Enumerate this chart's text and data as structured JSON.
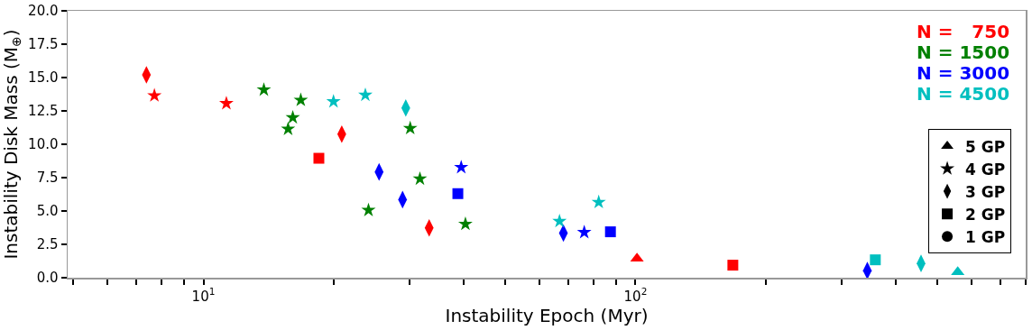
{
  "chart_data": {
    "type": "scatter",
    "xlabel": "Instability Epoch (Myr)",
    "ylabel": "Instability Disk Mass (M$_{⊕}$)",
    "log": "x",
    "grid": false,
    "legend": "right",
    "xlim": [
      4.85,
      800
    ],
    "xticks": [
      {
        "value": 5,
        "label": null
      },
      {
        "value": 6,
        "label": null
      },
      {
        "value": 7,
        "label": null
      },
      {
        "value": 8,
        "label": null
      },
      {
        "value": 9,
        "label": null
      },
      {
        "value": 10,
        "label": "10$^{1}$"
      },
      {
        "value": 20,
        "label": null
      },
      {
        "value": 30,
        "label": null
      },
      {
        "value": 40,
        "label": null
      },
      {
        "value": 50,
        "label": null
      },
      {
        "value": 60,
        "label": null
      },
      {
        "value": 70,
        "label": null
      },
      {
        "value": 80,
        "label": null
      },
      {
        "value": 90,
        "label": null
      },
      {
        "value": 100,
        "label": "10$^{2}$"
      },
      {
        "value": 200,
        "label": null
      },
      {
        "value": 300,
        "label": null
      },
      {
        "value": 400,
        "label": null
      },
      {
        "value": 500,
        "label": null
      },
      {
        "value": 600,
        "label": null
      },
      {
        "value": 700,
        "label": null
      },
      {
        "value": 800,
        "label": null
      }
    ],
    "ylim": [
      0,
      20
    ],
    "yticks": [
      {
        "value": 0,
        "label": "0.0"
      },
      2.5,
      {
        "value": 5,
        "label": "5.0"
      },
      7.5,
      {
        "value": 10,
        "label": "10.0"
      },
      12.5,
      {
        "value": 15,
        "label": "15.0"
      },
      17.5,
      {
        "value": 20,
        "label": "20.0"
      }
    ],
    "series": [
      {
        "name": "N =   750",
        "color": "#ff0000",
        "marker": "diamond",
        "x": [
          7.38,
          20.9,
          33.3
        ],
        "values": [
          15.2,
          10.76,
          3.73
        ]
      },
      {
        "color": "#ff0000",
        "marker": "star",
        "x": [
          7.7,
          11.3
        ],
        "values": [
          13.65,
          13.06
        ]
      },
      {
        "color": "#ff0000",
        "marker": "square",
        "x": [
          18.5,
          168
        ],
        "values": [
          8.95,
          0.94
        ]
      },
      {
        "color": "#ff0000",
        "marker": "triangle",
        "x": [
          100.8
        ],
        "values": [
          1.44
        ]
      },
      {
        "name": "N = 1500",
        "color": "#008000",
        "marker": "star",
        "x": [
          13.8,
          16.1,
          15.7,
          16.8,
          30.1,
          31.7,
          24.1,
          40.4
        ],
        "values": [
          14.08,
          12.0,
          11.14,
          13.31,
          11.2,
          7.41,
          5.06,
          4.02
        ]
      },
      {
        "name": "N = 3000",
        "color": "#0000ff",
        "marker": "diamond",
        "x": [
          25.5,
          28.9,
          68.1,
          344
        ],
        "values": [
          7.93,
          5.85,
          3.34,
          0.53
        ]
      },
      {
        "color": "#0000ff",
        "marker": "star",
        "x": [
          39.5,
          76.1
        ],
        "values": [
          8.27,
          3.4
        ]
      },
      {
        "color": "#0000ff",
        "marker": "square",
        "x": [
          38.8,
          87.5
        ],
        "values": [
          6.3,
          3.44
        ]
      },
      {
        "name": "N = 4500",
        "color": "#00bfbf",
        "marker": "star",
        "x": [
          20.0,
          23.7,
          66.7,
          82.2
        ],
        "values": [
          13.2,
          13.69,
          4.23,
          5.66
        ]
      },
      {
        "color": "#00bfbf",
        "marker": "diamond",
        "x": [
          29.4,
          458
        ],
        "values": [
          12.72,
          1.07
        ]
      },
      {
        "color": "#00bfbf",
        "marker": "square",
        "x": [
          359
        ],
        "values": [
          1.34
        ]
      },
      {
        "color": "#00bfbf",
        "marker": "triangle",
        "x": [
          557
        ],
        "values": [
          0.42
        ]
      },
      {
        "name": "5 GP",
        "color": "#000000",
        "marker": "triangle"
      },
      {
        "name": "4 GP",
        "color": "#000000",
        "marker": "star"
      },
      {
        "name": "3 GP",
        "color": "#000000",
        "marker": "diamond"
      },
      {
        "name": "2 GP",
        "color": "#000000",
        "marker": "square"
      },
      {
        "name": "1 GP",
        "color": "#000000",
        "marker": "circle"
      }
    ]
  }
}
